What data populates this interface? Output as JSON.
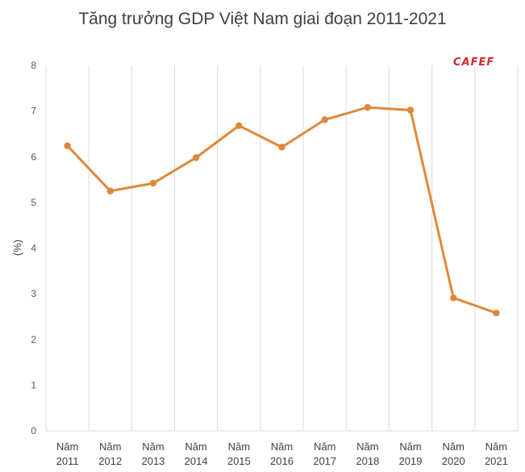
{
  "chart_data": {
    "type": "line",
    "title": "Tăng trưởng GDP Việt Nam giai đoạn 2011-2021",
    "ylabel": "(%)",
    "xlabel": "",
    "categories": [
      [
        "Năm",
        "2011"
      ],
      [
        "Năm",
        "2012"
      ],
      [
        "Năm",
        "2013"
      ],
      [
        "Năm",
        "2014"
      ],
      [
        "Năm",
        "2015"
      ],
      [
        "Năm",
        "2016"
      ],
      [
        "Năm",
        "2017"
      ],
      [
        "Năm",
        "2018"
      ],
      [
        "Năm",
        "2019"
      ],
      [
        "Năm",
        "2020"
      ],
      [
        "Năm",
        "2021"
      ]
    ],
    "series": [
      {
        "values": [
          6.24,
          5.25,
          5.42,
          5.98,
          6.68,
          6.21,
          6.81,
          7.08,
          7.02,
          2.91,
          2.58
        ],
        "color": "#e0883a"
      }
    ],
    "ylim": [
      0,
      8
    ],
    "yticks": [
      "0",
      "1",
      "2",
      "3",
      "4",
      "5",
      "6",
      "7",
      "8"
    ],
    "grid": "vertical",
    "legend": "none"
  },
  "watermark": "CAFEF"
}
